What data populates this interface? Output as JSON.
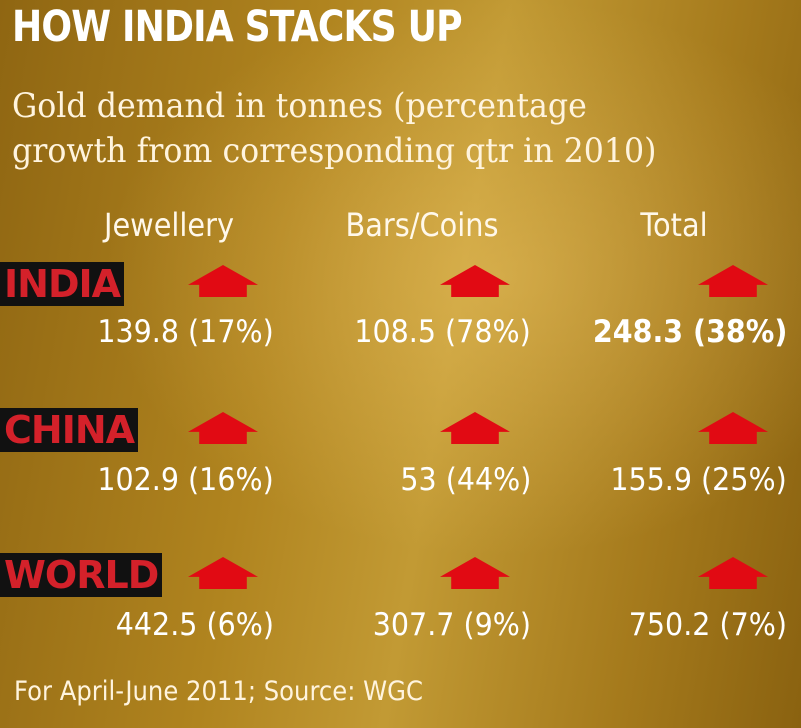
{
  "title": "HOW INDIA STACKS UP",
  "subtitle_line1": "Gold demand in tonnes (percentage",
  "subtitle_line2": "growth from corresponding qtr in 2010)",
  "columns": {
    "jewellery": "Jewellery",
    "bars_coins": "Bars/Coins",
    "total": "Total"
  },
  "rows": {
    "india": {
      "label": "INDIA",
      "jewellery": "139.8 (17%)",
      "bars_coins": "108.5 (78%)",
      "total": "248.3 (38%)"
    },
    "china": {
      "label": "CHINA",
      "jewellery": "102.9 (16%)",
      "bars_coins": "53 (44%)",
      "total": "155.9 (25%)"
    },
    "world": {
      "label": "WORLD",
      "jewellery": "442.5 (6%)",
      "bars_coins": "307.7 (9%)",
      "total": "750.2 (7%)"
    }
  },
  "colors": {
    "background": "#b08a2a",
    "arrow": "#e10a13",
    "region_label": "#d4212a",
    "region_bg": "#111111"
  },
  "icons": {
    "growth": "red-up-arrow-icon"
  },
  "source": "For April-June 2011; Source: WGC"
}
